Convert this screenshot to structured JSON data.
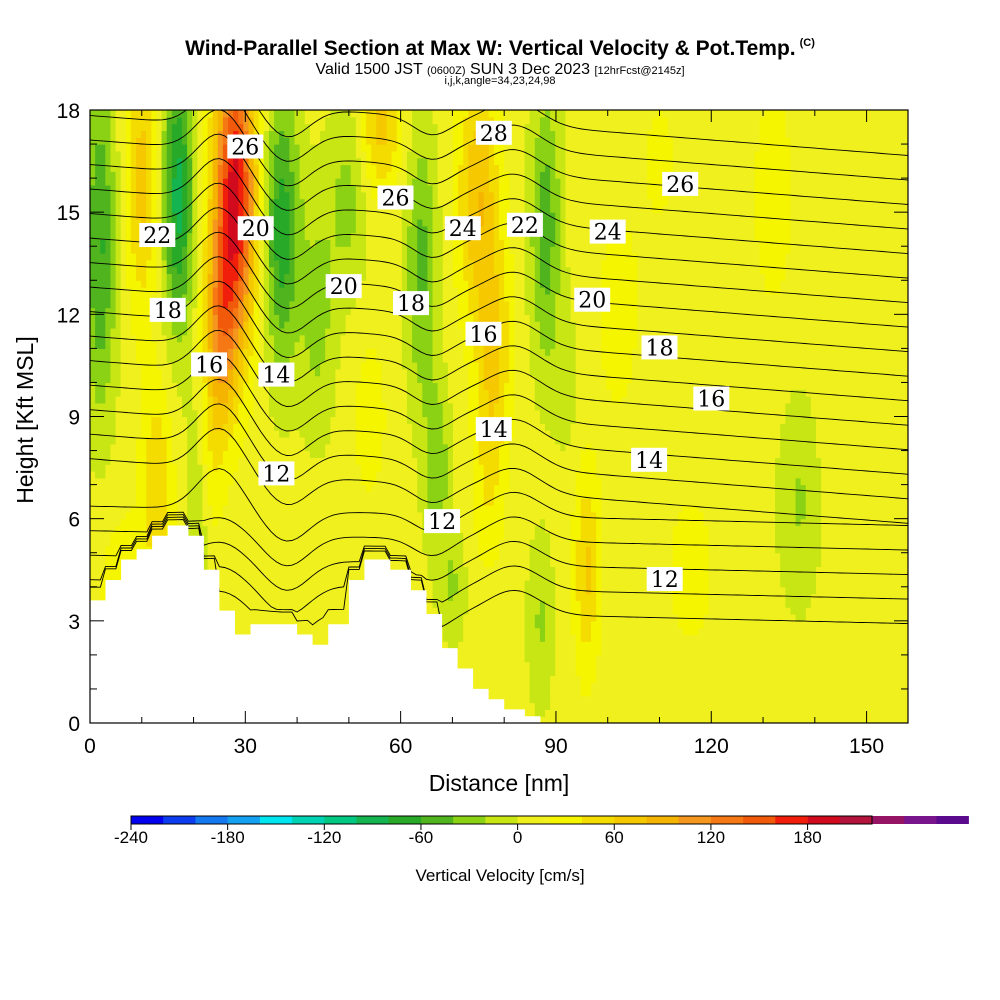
{
  "title": {
    "main": "Wind-Parallel Section at Max W: Vertical Velocity & Pot.Temp.",
    "copyright": "(C)",
    "valid_prefix": "Valid 1500 JST",
    "valid_utc": "(0600Z)",
    "valid_date": "SUN 3 Dec 2023",
    "forecast": "[12hrFcst@2145z]",
    "params": "i,j,k,angle=34,23,24,98"
  },
  "chart_data": {
    "type": "heatmap",
    "xlabel": "Distance [nm]",
    "ylabel": "Height [Kft MSL]",
    "xlim": [
      0,
      158
    ],
    "ylim": [
      0,
      18
    ],
    "x_ticks": [
      0,
      30,
      60,
      90,
      120,
      150
    ],
    "y_ticks": [
      0,
      3,
      6,
      9,
      12,
      15,
      18
    ],
    "shading": {
      "variable": "Vertical Velocity [cm/s]",
      "colorbar_ticks": [
        -240,
        -180,
        -120,
        -60,
        0,
        60,
        120,
        180
      ],
      "colorbar_range": [
        -240,
        220
      ],
      "colors": [
        "#0000f0",
        "#0c3cf0",
        "#1478f0",
        "#14a0f0",
        "#00e6f0",
        "#00d2b4",
        "#00c882",
        "#14b450",
        "#28aa28",
        "#50b41e",
        "#8cd214",
        "#c8e614",
        "#f0f01e",
        "#f5f500",
        "#f5dc00",
        "#f5c800",
        "#f5b400",
        "#f5961e",
        "#f57814",
        "#f05a0a",
        "#f01e0a",
        "#d20a1e",
        "#b4143c",
        "#961464",
        "#78148c",
        "#5a0a8c"
      ]
    },
    "theta_contours": {
      "variable": "Potential Temperature (C)",
      "interval": 1,
      "labels": [
        {
          "text": "26",
          "x": 30,
          "y": 16.9
        },
        {
          "text": "22",
          "x": 13,
          "y": 14.3
        },
        {
          "text": "20",
          "x": 32,
          "y": 14.5
        },
        {
          "text": "18",
          "x": 15,
          "y": 12.1
        },
        {
          "text": "16",
          "x": 23,
          "y": 10.5
        },
        {
          "text": "14",
          "x": 36,
          "y": 10.2
        },
        {
          "text": "12",
          "x": 36,
          "y": 7.3
        },
        {
          "text": "26",
          "x": 59,
          "y": 15.4
        },
        {
          "text": "20",
          "x": 49,
          "y": 12.8
        },
        {
          "text": "18",
          "x": 62,
          "y": 12.3
        },
        {
          "text": "28",
          "x": 78,
          "y": 17.3
        },
        {
          "text": "24",
          "x": 72,
          "y": 14.5
        },
        {
          "text": "22",
          "x": 84,
          "y": 14.6
        },
        {
          "text": "16",
          "x": 76,
          "y": 11.4
        },
        {
          "text": "14",
          "x": 78,
          "y": 8.6
        },
        {
          "text": "12",
          "x": 68,
          "y": 5.9
        },
        {
          "text": "24",
          "x": 100,
          "y": 14.4
        },
        {
          "text": "20",
          "x": 97,
          "y": 12.4
        },
        {
          "text": "26",
          "x": 114,
          "y": 15.8
        },
        {
          "text": "18",
          "x": 110,
          "y": 11.0
        },
        {
          "text": "16",
          "x": 120,
          "y": 9.5
        },
        {
          "text": "14",
          "x": 108,
          "y": 7.7
        },
        {
          "text": "12",
          "x": 111,
          "y": 4.2
        }
      ]
    },
    "terrain": {
      "note": "white blocky topography in kft",
      "x": [
        0,
        3,
        3,
        6,
        6,
        9,
        9,
        12,
        12,
        15,
        15,
        19,
        19,
        22,
        22,
        25,
        25,
        28,
        28,
        31,
        31,
        40,
        40,
        43,
        43,
        46,
        46,
        50,
        50,
        53,
        53,
        58,
        58,
        62,
        62,
        65,
        65,
        68,
        68,
        71,
        71,
        74,
        74,
        77,
        77,
        80,
        80,
        84,
        84,
        87,
        87,
        158
      ],
      "h": [
        3.6,
        3.6,
        4.2,
        4.2,
        4.8,
        4.8,
        5.1,
        5.1,
        5.5,
        5.5,
        5.8,
        5.8,
        5.5,
        5.5,
        4.5,
        4.5,
        3.3,
        3.3,
        2.6,
        2.6,
        2.9,
        2.9,
        2.6,
        2.6,
        2.3,
        2.3,
        2.9,
        2.9,
        4.2,
        4.2,
        4.8,
        4.8,
        4.5,
        4.5,
        3.9,
        3.9,
        3.2,
        3.2,
        2.2,
        2.2,
        1.6,
        1.6,
        1.0,
        1.0,
        0.7,
        0.7,
        0.4,
        0.4,
        0.2,
        0.2,
        0.0,
        0.0
      ]
    }
  }
}
